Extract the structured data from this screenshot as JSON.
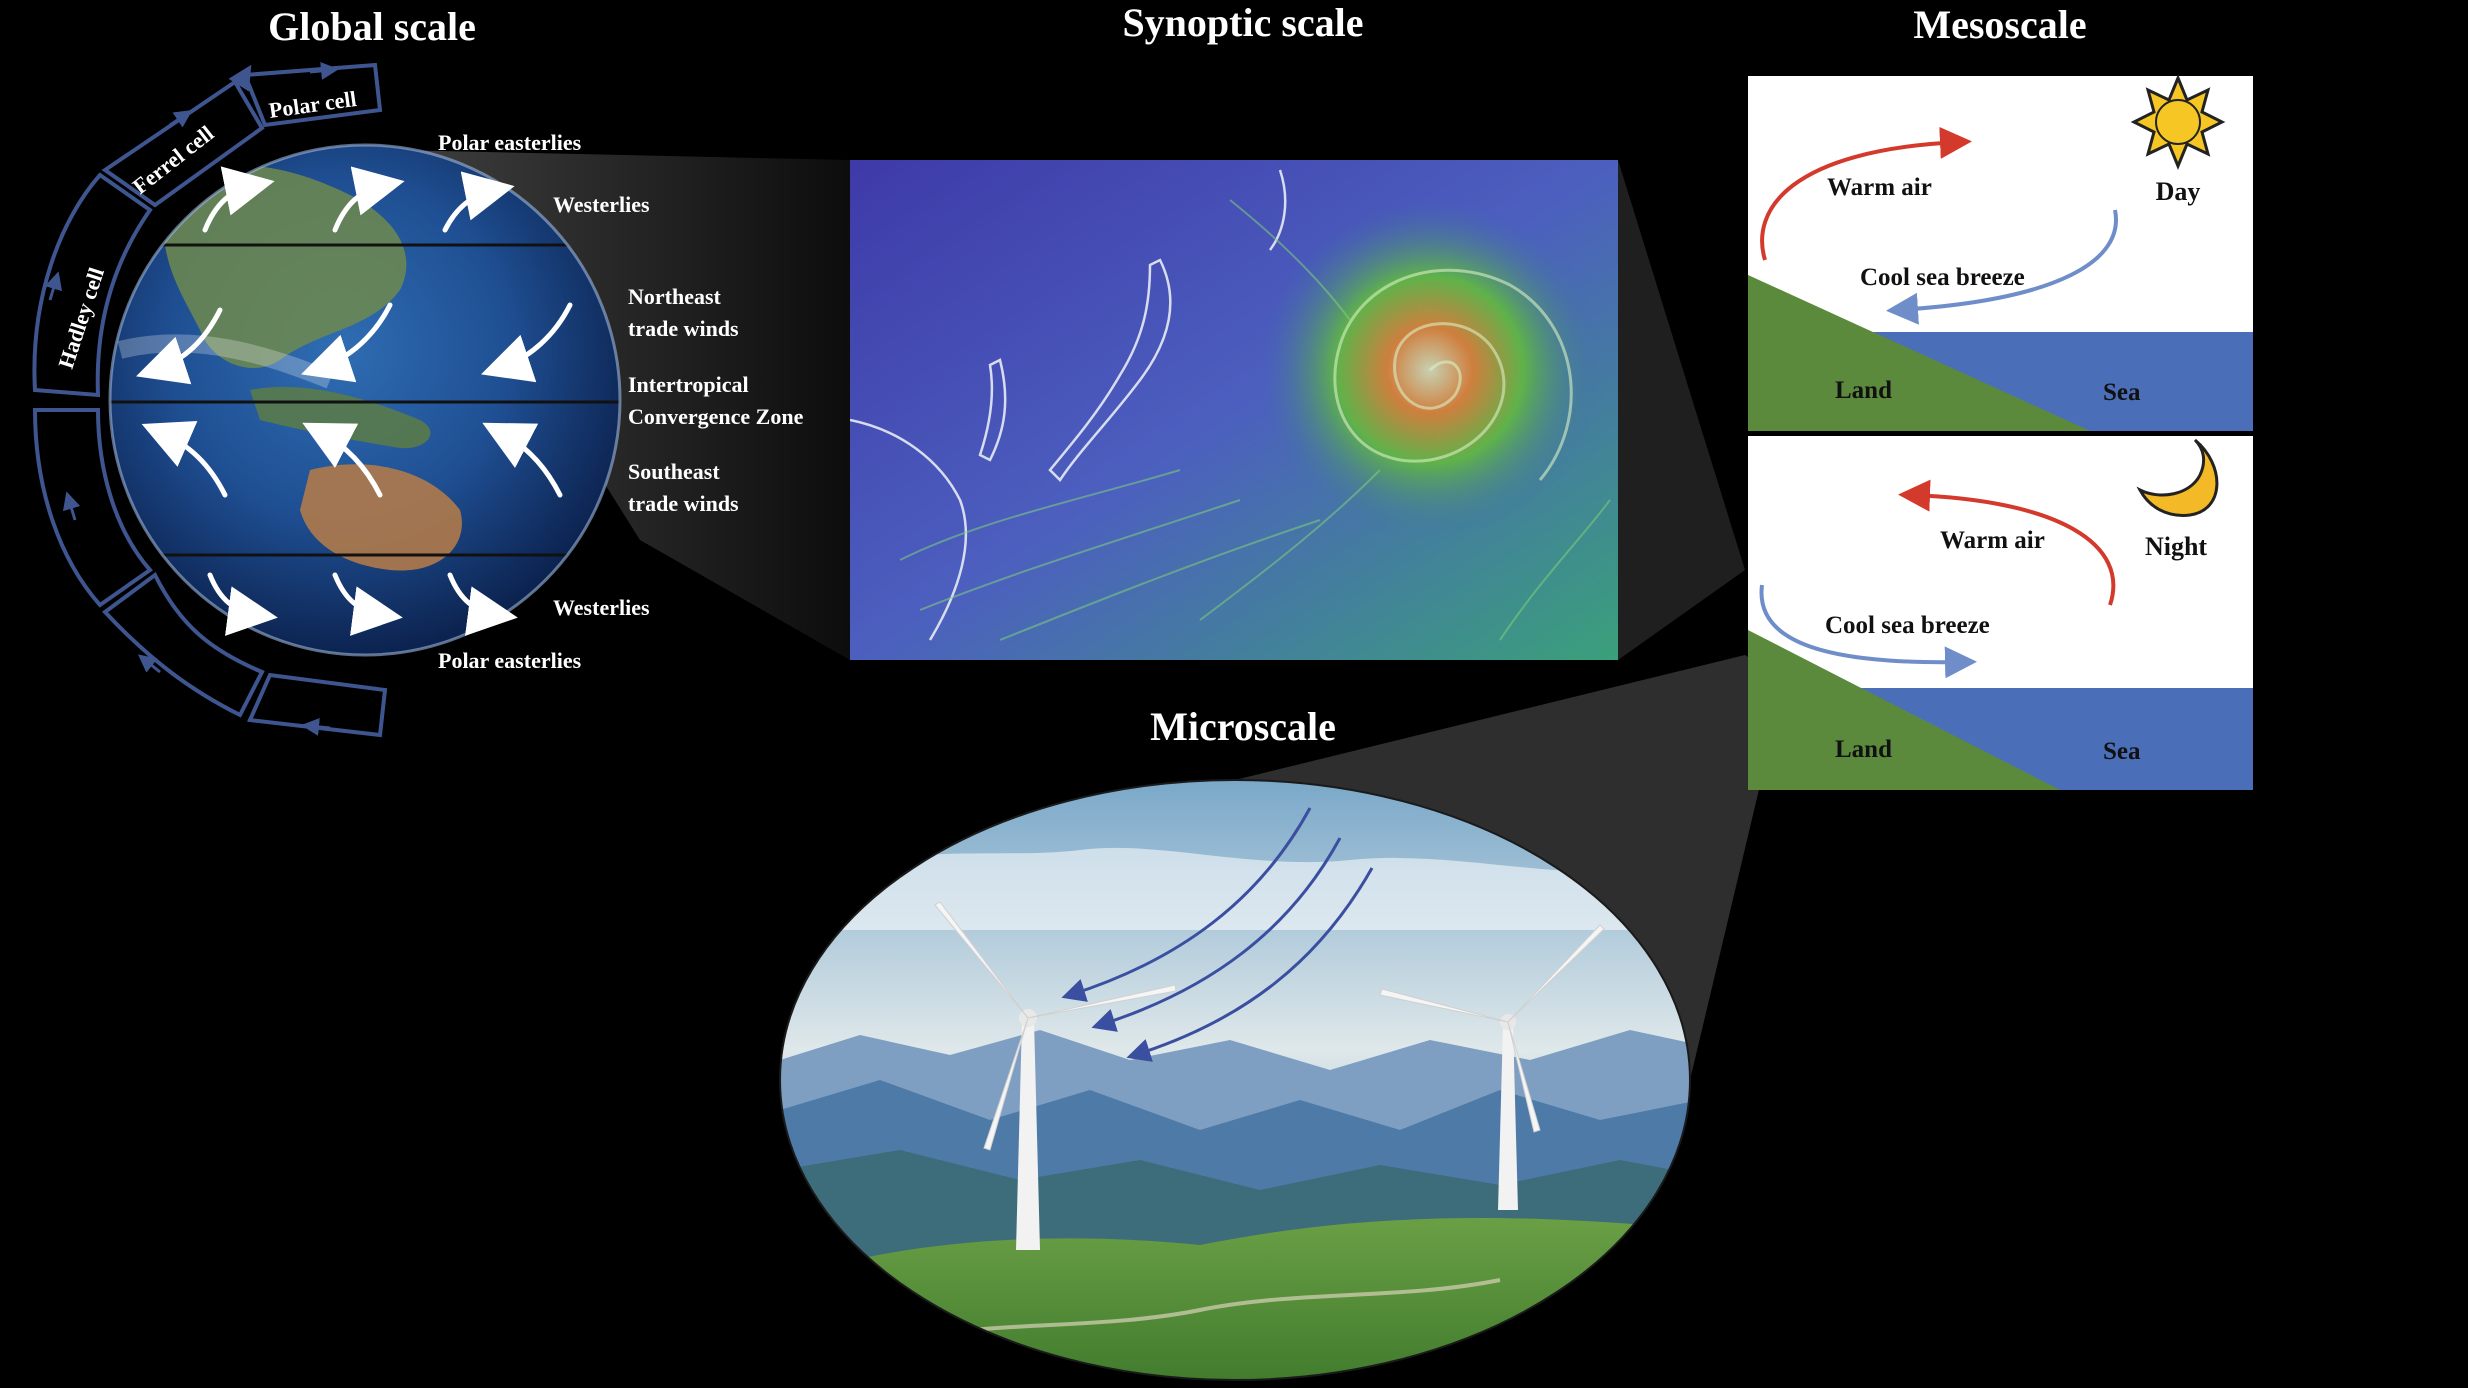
{
  "colors": {
    "background": "#000000",
    "warm_arrow": "#d43a2c",
    "cool_arrow": "#6f8ec9",
    "land": "#5c8a3c",
    "sea": "#4a6fb8",
    "cell_outline": "#3e5590",
    "sun": "#f6c624",
    "moon": "#f3b927"
  },
  "global": {
    "title": "Global scale",
    "cells": {
      "polar": "Polar cell",
      "ferrel": "Ferrel cell",
      "hadley": "Hadley cell"
    },
    "labels": {
      "polar_easterlies_top": "Polar easterlies",
      "westerlies_top": "Westerlies",
      "ne_trade_1": "Northeast",
      "ne_trade_2": "trade winds",
      "itcz_1": "Intertropical",
      "itcz_2": "Convergence Zone",
      "se_trade_1": "Southeast",
      "se_trade_2": "trade winds",
      "westerlies_bottom": "Westerlies",
      "polar_easterlies_bottom": "Polar easterlies"
    }
  },
  "synoptic": {
    "title": "Synoptic scale"
  },
  "mesoscale": {
    "title": "Mesoscale",
    "day": {
      "label": "Day",
      "warm": "Warm air",
      "cool": "Cool sea breeze",
      "land": "Land",
      "sea": "Sea"
    },
    "night": {
      "label": "Night",
      "warm": "Warm air",
      "cool": "Cool sea breeze",
      "land": "Land",
      "sea": "Sea"
    }
  },
  "micro": {
    "title": "Microscale"
  }
}
